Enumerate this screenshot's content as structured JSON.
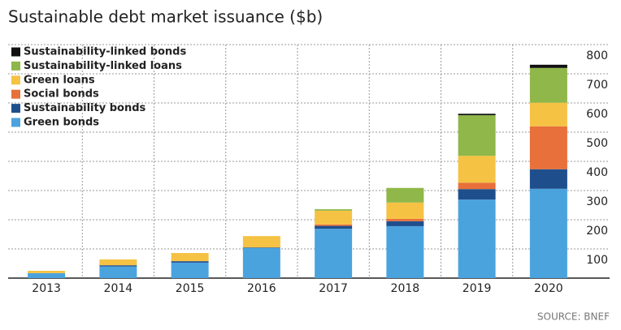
{
  "chart_data": {
    "type": "stacked_bar",
    "title": "Sustainable debt market issuance ($b)",
    "source": "SOURCE: BNEF",
    "categories": [
      "2013",
      "2014",
      "2015",
      "2016",
      "2017",
      "2018",
      "2019",
      "2020"
    ],
    "series": [
      {
        "name": "Green bonds",
        "color": "#4ba3de",
        "values": [
          17,
          40,
          53,
          103,
          169,
          178,
          269,
          306
        ]
      },
      {
        "name": "Sustainability bonds",
        "color": "#1f4e8c",
        "values": [
          0,
          4,
          5,
          2,
          10,
          17,
          36,
          67
        ]
      },
      {
        "name": "Social bonds",
        "color": "#e8703a",
        "values": [
          0,
          0,
          0,
          0,
          5,
          8,
          22,
          147
        ]
      },
      {
        "name": "Green loans",
        "color": "#f5c244",
        "values": [
          8,
          20,
          28,
          39,
          47,
          56,
          92,
          81
        ]
      },
      {
        "name": "Sustainability-linked loans",
        "color": "#8fb74a",
        "values": [
          0,
          0,
          0,
          0,
          5,
          50,
          139,
          119
        ]
      },
      {
        "name": "Sustainability-linked bonds",
        "color": "#111111",
        "values": [
          0,
          0,
          0,
          0,
          0,
          0,
          5,
          11
        ]
      }
    ],
    "ylim": [
      0,
      800
    ],
    "yticks": [
      100,
      200,
      300,
      400,
      500,
      600,
      700,
      800
    ],
    "grid": true
  }
}
